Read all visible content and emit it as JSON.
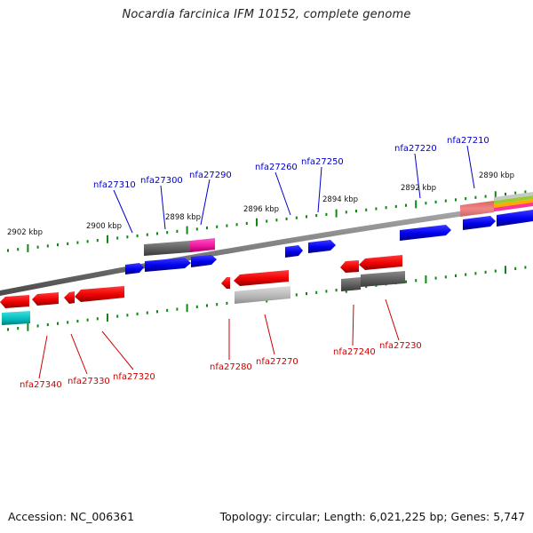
{
  "title": "Nocardia farcinica IFM 10152, complete genome",
  "footer": {
    "accession": "Accession: NC_006361",
    "summary": "Topology: circular; Length: 6,021,225 bp; Genes: 5,747"
  },
  "colors": {
    "forward_label": "#0000cc",
    "reverse_label": "#cc0000",
    "backbone": "#808080",
    "tick": "#118811"
  },
  "scale_labels": [
    "2902 kbp",
    "2900 kbp",
    "2898 kbp",
    "2896 kbp",
    "2894 kbp",
    "2892 kbp",
    "2890 kbp"
  ],
  "forward_genes": [
    "nfa27310",
    "nfa27300",
    "nfa27290",
    "nfa27260",
    "nfa27250",
    "nfa27220",
    "nfa27210"
  ],
  "reverse_genes": [
    "nfa27340",
    "nfa27330",
    "nfa27320",
    "nfa27280",
    "nfa27270",
    "nfa27240",
    "nfa27230"
  ]
}
